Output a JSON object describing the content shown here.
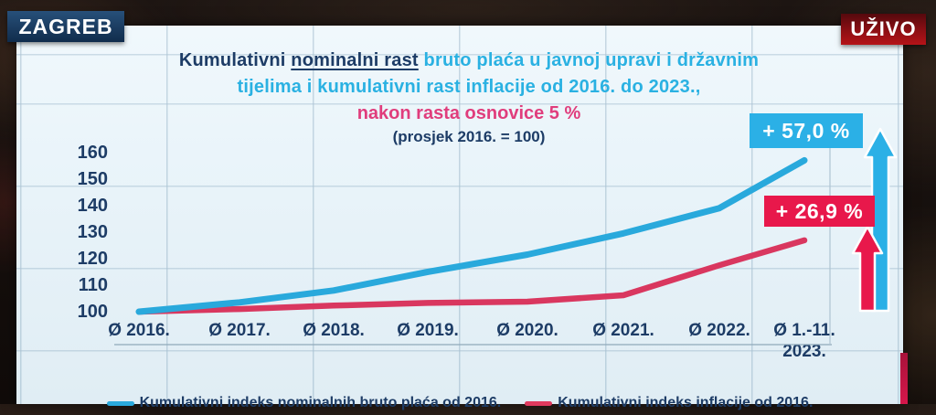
{
  "broadcast": {
    "location_bug": "ZAGREB",
    "live_bug": "UŽIVO"
  },
  "slide": {
    "title": {
      "line1_navy": "Kumulativni",
      "line1_navy_underlined": "nominalni rast",
      "line1_cyan": "bruto plaća u javnoj upravi i državnim",
      "line2_cyan": "tijelima i kumulativni rast inflacije od 2016. do 2023.,",
      "subtitle_pink": "nakon rasta osnovice 5 %",
      "subtitle_note": "(prosjek 2016. = 100)"
    },
    "callouts": {
      "salary_growth": "+ 57,0 %",
      "inflation_growth": "+ 26,9 %"
    },
    "legend": {
      "salary": "Kumulativni indeks nominalnih bruto plaća od 2016.",
      "inflation": "Kumulativni indeks inflacije od 2016."
    }
  },
  "chart_data": {
    "type": "line",
    "title": "Kumulativni nominalni rast bruto plaća u javnoj upravi i državnim tijelima i kumulativni rast inflacije od 2016. do 2023., nakon rasta osnovice 5 %",
    "subtitle": "(prosjek 2016. = 100)",
    "categories": [
      "Ø 2016.",
      "Ø 2017.",
      "Ø 2018.",
      "Ø 2019.",
      "Ø 2020.",
      "Ø 2021.",
      "Ø 2022.",
      "Ø 1.-11.\n2023."
    ],
    "series": [
      {
        "name": "Kumulativni indeks nominalnih bruto plaća od 2016.",
        "color": "#29a9dc",
        "values": [
          100,
          103.5,
          108,
          115,
          121.5,
          129.5,
          139,
          157
        ],
        "end_label": "+ 57,0 %"
      },
      {
        "name": "Kumulativni indeks inflacije od 2016.",
        "color": "#d9375f",
        "values": [
          100,
          101,
          102.3,
          103.3,
          103.8,
          106.2,
          117.5,
          126.9
        ],
        "end_label": "+ 26,9 %"
      }
    ],
    "y_ticks": [
      160,
      150,
      140,
      130,
      120,
      110,
      100
    ],
    "ylim": [
      100,
      165
    ],
    "xlabel": "",
    "ylabel": "",
    "grid": "faint video-wall panel grid",
    "legend_position": "bottom"
  },
  "colors": {
    "slide_background": "#e8f3f9",
    "title_navy": "#1d3c66",
    "title_cyan": "#2ab1e2",
    "title_pink": "#e03d7c",
    "salary_line": "#29a9dc",
    "inflation_line": "#d9375f",
    "salary_callout_bg": "#2bb0e6",
    "inflation_callout_bg": "#e8184b",
    "zagreb_bug_bg": "#1b3c60",
    "live_bug_bg": "#b51318"
  }
}
